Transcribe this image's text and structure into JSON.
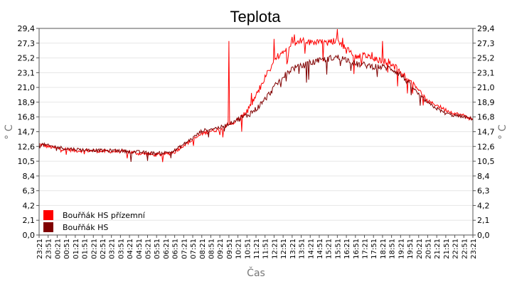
{
  "chart_data": {
    "type": "line",
    "title": "Teplota",
    "xlabel": "Čas",
    "ylabel": "° C",
    "ylim": [
      0,
      29.4
    ],
    "yticks": [
      "0,0",
      "2,1",
      "4,2",
      "6,3",
      "8,4",
      "10,5",
      "12,6",
      "14,7",
      "16,8",
      "18,9",
      "21,0",
      "23,1",
      "25,2",
      "27,3",
      "29,4"
    ],
    "xticks": [
      "23:21",
      "23:51",
      "00:21",
      "00:51",
      "01:21",
      "01:51",
      "02:21",
      "02:51",
      "03:21",
      "03:51",
      "04:21",
      "04:51",
      "05:21",
      "05:51",
      "06:21",
      "06:51",
      "07:21",
      "07:51",
      "08:21",
      "08:51",
      "09:21",
      "09:51",
      "10:21",
      "10:51",
      "11:21",
      "11:51",
      "12:21",
      "12:51",
      "13:21",
      "13:51",
      "14:21",
      "14:51",
      "15:21",
      "15:51",
      "16:21",
      "16:51",
      "17:21",
      "17:51",
      "18:21",
      "18:51",
      "19:21",
      "19:51",
      "20:21",
      "20:51",
      "21:21",
      "21:51",
      "22:21",
      "22:51",
      "23:21"
    ],
    "grid": true,
    "legend_position": "bottom-left",
    "series": [
      {
        "name": "Bouřňák HS přízemní",
        "color": "#ff0000",
        "values": [
          12.9,
          12.6,
          12.3,
          12.2,
          12.0,
          12.0,
          12.0,
          11.9,
          11.9,
          11.9,
          11.8,
          11.6,
          11.5,
          11.4,
          11.5,
          11.8,
          12.8,
          13.5,
          14.4,
          14.8,
          15.0,
          15.7,
          16.3,
          17.5,
          19.8,
          22.5,
          24.6,
          26.1,
          27.5,
          27.7,
          27.4,
          27.6,
          27.3,
          27.8,
          26.5,
          25.4,
          25.6,
          25.0,
          24.8,
          24.4,
          23.0,
          22.3,
          20.7,
          19.0,
          18.5,
          17.8,
          17.3,
          17.0,
          16.4
        ],
        "highlights": [
          [
            21,
            27.6
          ],
          [
            26,
            27.9
          ],
          [
            28,
            28.2
          ],
          [
            33,
            29.3
          ],
          [
            34,
            25.8
          ],
          [
            38,
            27.6
          ]
        ]
      },
      {
        "name": "Bouřňák HS",
        "color": "#800000",
        "values": [
          13.0,
          12.7,
          12.5,
          12.3,
          12.2,
          12.1,
          12.1,
          12.0,
          12.0,
          12.0,
          11.9,
          11.8,
          11.7,
          11.6,
          11.7,
          12.0,
          12.9,
          13.8,
          14.8,
          15.1,
          15.3,
          15.8,
          16.5,
          17.0,
          17.9,
          19.3,
          21.0,
          22.5,
          23.7,
          24.0,
          24.5,
          24.8,
          25.1,
          25.3,
          25.0,
          24.3,
          24.2,
          24.0,
          23.9,
          23.7,
          22.8,
          21.5,
          20.0,
          18.8,
          18.0,
          17.3,
          17.0,
          16.8,
          16.5
        ],
        "highlights": []
      }
    ]
  }
}
